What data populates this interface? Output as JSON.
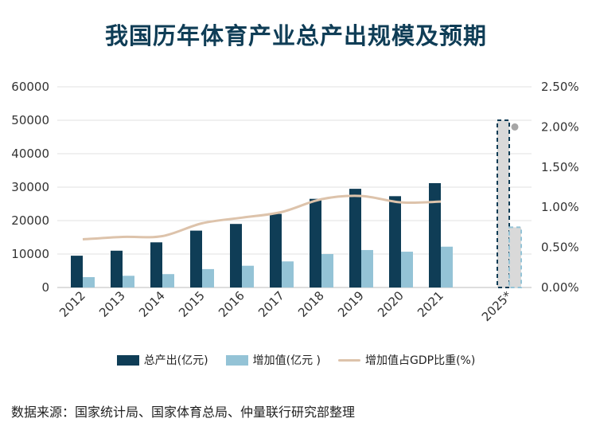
{
  "title": "我国历年体育产业总产出规模及预期",
  "source": "数据来源：国家统计局、国家体育总局、仲量联行研究部整理",
  "colors": {
    "total_output": "#0f3d56",
    "added_value": "#94c3d6",
    "gdp_share": "#ddc3ab",
    "forecast_fill": "#d9d9d9",
    "forecast_dot": "#a6a6a6",
    "grid": "#e0e0e0"
  },
  "chart_data": {
    "type": "bar",
    "categories": [
      "2012",
      "2013",
      "2014",
      "2015",
      "2016",
      "2017",
      "2018",
      "2019",
      "2020",
      "2021",
      "2025*"
    ],
    "forecast_category": "2025*",
    "series": [
      {
        "name": "总产出(亿元)",
        "axis": "left",
        "type": "bar",
        "values": [
          9500,
          11000,
          13500,
          17000,
          19000,
          22000,
          26500,
          29500,
          27300,
          31200,
          50000
        ]
      },
      {
        "name": "增加值(亿元 )",
        "axis": "left",
        "type": "bar",
        "values": [
          3100,
          3500,
          4000,
          5500,
          6500,
          7800,
          10000,
          11200,
          10700,
          12200,
          18000
        ]
      },
      {
        "name": "增加值占GDP比重(%)",
        "axis": "right",
        "type": "line",
        "values": [
          0.6,
          0.63,
          0.64,
          0.8,
          0.87,
          0.94,
          1.1,
          1.14,
          1.06,
          1.07,
          2.0
        ]
      }
    ],
    "y_left": {
      "ylim": [
        0,
        60000
      ],
      "ticks": [
        "0",
        "10000",
        "20000",
        "30000",
        "40000",
        "50000",
        "60000"
      ]
    },
    "y_right": {
      "ylim": [
        0,
        2.5
      ],
      "ticks": [
        "0.00%",
        "0.50%",
        "1.00%",
        "1.50%",
        "2.00%",
        "2.50%"
      ]
    },
    "grid": true,
    "legend": "bottom"
  }
}
